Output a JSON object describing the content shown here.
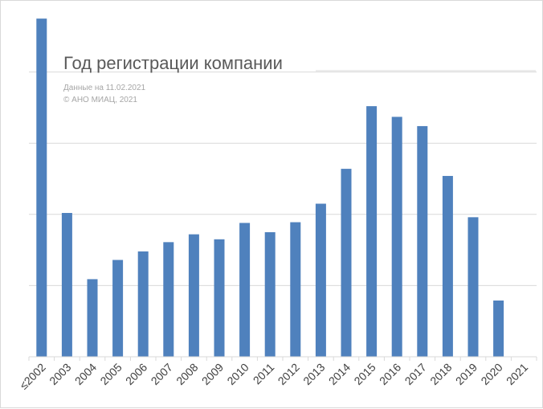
{
  "chart_data": {
    "type": "bar",
    "title": "Год регистрации компании",
    "subtitle_lines": [
      "Данные на 11.02.2021",
      "© АНО МИАЦ, 2021"
    ],
    "categories": [
      "≤2002",
      "2003",
      "2004",
      "2005",
      "2006",
      "2007",
      "2008",
      "2009",
      "2010",
      "2011",
      "2012",
      "2013",
      "2014",
      "2015",
      "2016",
      "2017",
      "2018",
      "2019",
      "2020",
      "2021"
    ],
    "values": [
      4.75,
      2.02,
      1.09,
      1.36,
      1.48,
      1.61,
      1.72,
      1.65,
      1.88,
      1.75,
      1.89,
      2.15,
      2.64,
      3.52,
      3.37,
      3.24,
      2.54,
      1.96,
      0.79,
      0
    ],
    "ylim": [
      0,
      5
    ],
    "gridlines": true,
    "y_tick_labels_visible": false,
    "legend": "none",
    "bar_color": "#4f81bd"
  }
}
